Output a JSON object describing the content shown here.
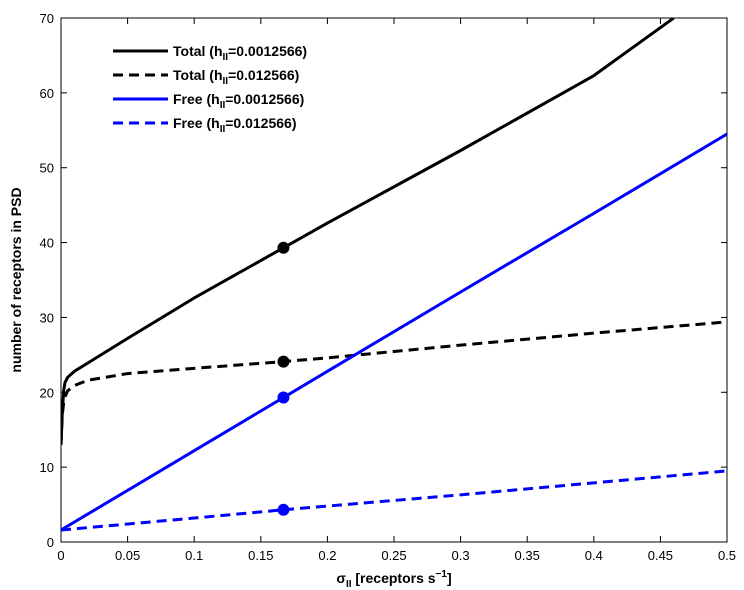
{
  "chart_data": {
    "type": "line",
    "title": "",
    "xlabel": {
      "base": "σ",
      "sub": "II",
      "main": " [receptors s",
      "sup": "−1",
      "end": "]"
    },
    "ylabel": "number of receptors in PSD",
    "xlim": [
      0,
      0.5
    ],
    "ylim": [
      0,
      70
    ],
    "xticks": [
      0,
      0.05,
      0.1,
      0.15,
      0.2,
      0.25,
      0.3,
      0.35,
      0.4,
      0.45,
      0.5
    ],
    "xtick_labels": [
      "0",
      "0.05",
      "0.1",
      "0.15",
      "0.2",
      "0.25",
      "0.3",
      "0.35",
      "0.4",
      "0.45",
      "0.5"
    ],
    "yticks": [
      0,
      10,
      20,
      30,
      40,
      50,
      60,
      70
    ],
    "ytick_labels": [
      "0",
      "10",
      "20",
      "30",
      "40",
      "50",
      "60",
      "70"
    ],
    "grid": false,
    "legend_position": "top-left",
    "series": [
      {
        "label": {
          "pre": "Total (h",
          "sub": "II",
          "post": "=0.0012566)"
        },
        "color": "#000000",
        "dash": "solid",
        "x": [
          0,
          0.001,
          0.002,
          0.003,
          0.005,
          0.01,
          0.02,
          0.05,
          0.1,
          0.167,
          0.2,
          0.3,
          0.4,
          0.46
        ],
        "y": [
          13.0,
          17.5,
          20.2,
          21.3,
          22.0,
          22.8,
          23.9,
          27.2,
          32.6,
          39.3,
          42.6,
          52.3,
          62.3,
          70.0
        ],
        "marker": {
          "x": 0.167,
          "y": 39.3
        }
      },
      {
        "label": {
          "pre": "Total (h",
          "sub": "II",
          "post": "=0.012566)"
        },
        "color": "#000000",
        "dash": "dashed",
        "x": [
          0,
          0.001,
          0.002,
          0.003,
          0.005,
          0.01,
          0.02,
          0.05,
          0.1,
          0.167,
          0.2,
          0.3,
          0.4,
          0.5
        ],
        "y": [
          13.0,
          17.0,
          18.6,
          19.4,
          20.2,
          20.9,
          21.6,
          22.5,
          23.2,
          24.1,
          24.6,
          26.3,
          27.9,
          29.4
        ],
        "marker": {
          "x": 0.167,
          "y": 24.1
        }
      },
      {
        "label": {
          "pre": "Free (h",
          "sub": "II",
          "post": "=0.0012566)"
        },
        "color": "#0000ff",
        "dash": "solid",
        "x": [
          0,
          0.1,
          0.167,
          0.2,
          0.3,
          0.4,
          0.5
        ],
        "y": [
          1.6,
          12.2,
          19.3,
          22.8,
          33.4,
          43.9,
          54.5
        ],
        "marker": {
          "x": 0.167,
          "y": 19.3
        }
      },
      {
        "label": {
          "pre": "Free (h",
          "sub": "II",
          "post": "=0.012566)"
        },
        "color": "#0000ff",
        "dash": "dashed",
        "x": [
          0,
          0.1,
          0.167,
          0.2,
          0.3,
          0.4,
          0.5
        ],
        "y": [
          1.6,
          3.2,
          4.3,
          4.8,
          6.3,
          7.9,
          9.5
        ],
        "marker": {
          "x": 0.167,
          "y": 4.3
        }
      }
    ]
  }
}
